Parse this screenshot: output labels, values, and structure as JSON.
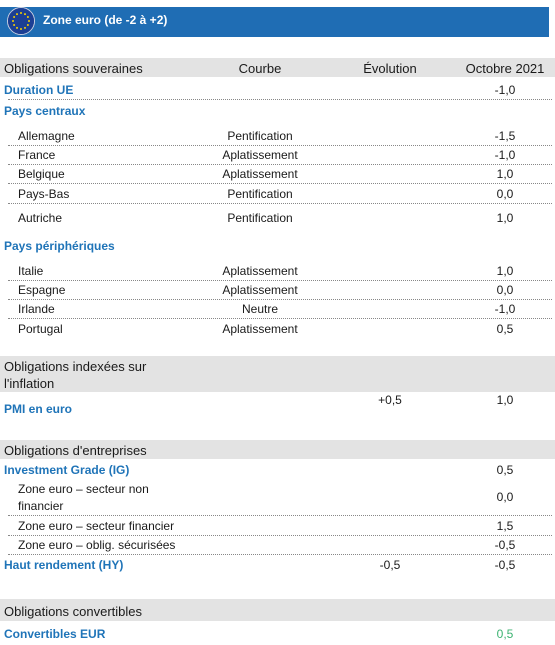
{
  "header": {
    "title": "Zone euro (de -2 à +2)"
  },
  "columns": {
    "category": "Obligations souveraines",
    "curve": "Courbe",
    "evolution": "Évolution",
    "october": "Octobre 2021"
  },
  "sovereign": {
    "duration": {
      "label": "Duration UE",
      "october": "-1,0"
    },
    "core_title": "Pays centraux",
    "core": [
      {
        "country": "Allemagne",
        "curve": "Pentification",
        "october": "-1,5"
      },
      {
        "country": "France",
        "curve": "Aplatissement",
        "october": "-1,0"
      },
      {
        "country": "Belgique",
        "curve": "Aplatissement",
        "october": "1,0"
      },
      {
        "country": "Pays-Bas",
        "curve": "Pentification",
        "october": "0,0"
      },
      {
        "country": "Autriche",
        "curve": "Pentification",
        "october": "1,0"
      }
    ],
    "periphery_title": "Pays périphériques",
    "periphery": [
      {
        "country": "Italie",
        "curve": "Aplatissement",
        "october": "1,0"
      },
      {
        "country": "Espagne",
        "curve": "Aplatissement",
        "october": "0,0"
      },
      {
        "country": "Irlande",
        "curve": "Neutre",
        "october": "-1,0"
      },
      {
        "country": "Portugal",
        "curve": "Aplatissement",
        "october": "0,5"
      }
    ]
  },
  "inflation": {
    "title_line1": "Obligations indexées sur",
    "title_line2": "l'inflation",
    "pmi": {
      "label": "PMI en euro",
      "evolution": "+0,5",
      "october": "1,0"
    }
  },
  "corporate": {
    "title": "Obligations d'entreprises",
    "ig": {
      "label": "Investment Grade (IG)",
      "october": "0,5"
    },
    "rows": [
      {
        "line1": "Zone euro – secteur non",
        "line2": "financier",
        "october": "0,0"
      },
      {
        "line1": "Zone euro – secteur financier",
        "october": "1,5"
      },
      {
        "line1": "Zone euro – oblig. sécurisées",
        "october": "-0,5"
      }
    ],
    "hy": {
      "label": "Haut rendement (HY)",
      "evolution": "-0,5",
      "october": "-0,5"
    }
  },
  "convertibles": {
    "title": "Obligations convertibles",
    "eur": {
      "label": "Convertibles EUR",
      "october": "0,5"
    }
  },
  "colors": {
    "header_bg": "#1f6db4",
    "category_text": "#1f74b8",
    "section_bg": "#e3e3e3",
    "positive_green": "#3cb371"
  },
  "icons": {
    "flag": "eu-flag-icon"
  }
}
